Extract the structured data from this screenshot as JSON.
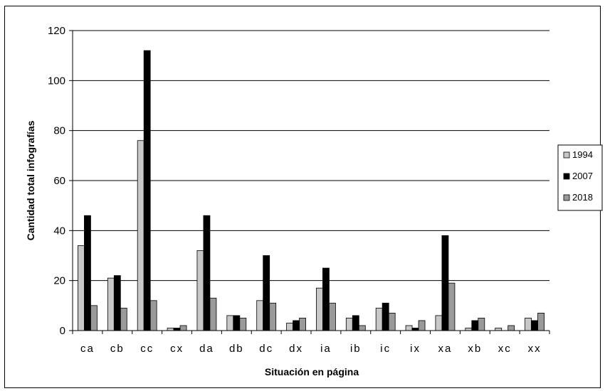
{
  "chart_data": {
    "type": "bar",
    "categories": [
      "ca",
      "cb",
      "cc",
      "cx",
      "da",
      "db",
      "dc",
      "dx",
      "ia",
      "ib",
      "ic",
      "ix",
      "xa",
      "xb",
      "xc",
      "xx"
    ],
    "series": [
      {
        "name": "1994",
        "color": "#c8c8c8",
        "values": [
          34,
          21,
          76,
          1,
          32,
          6,
          12,
          3,
          17,
          5,
          9,
          2,
          6,
          1,
          1,
          5
        ]
      },
      {
        "name": "2007",
        "color": "#000000",
        "values": [
          46,
          22,
          112,
          1,
          46,
          6,
          30,
          4,
          25,
          6,
          11,
          1,
          38,
          4,
          0,
          4
        ]
      },
      {
        "name": "2018",
        "color": "#9a9a9a",
        "values": [
          10,
          9,
          12,
          2,
          13,
          5,
          11,
          5,
          11,
          2,
          7,
          4,
          19,
          5,
          2,
          7
        ]
      }
    ],
    "title": "",
    "xlabel": "Situación en página",
    "ylabel": "Cantidad total infografías",
    "ylim": [
      0,
      120
    ],
    "yticks": [
      0,
      20,
      40,
      60,
      80,
      100,
      120
    ],
    "grid": true,
    "legend": "right"
  }
}
